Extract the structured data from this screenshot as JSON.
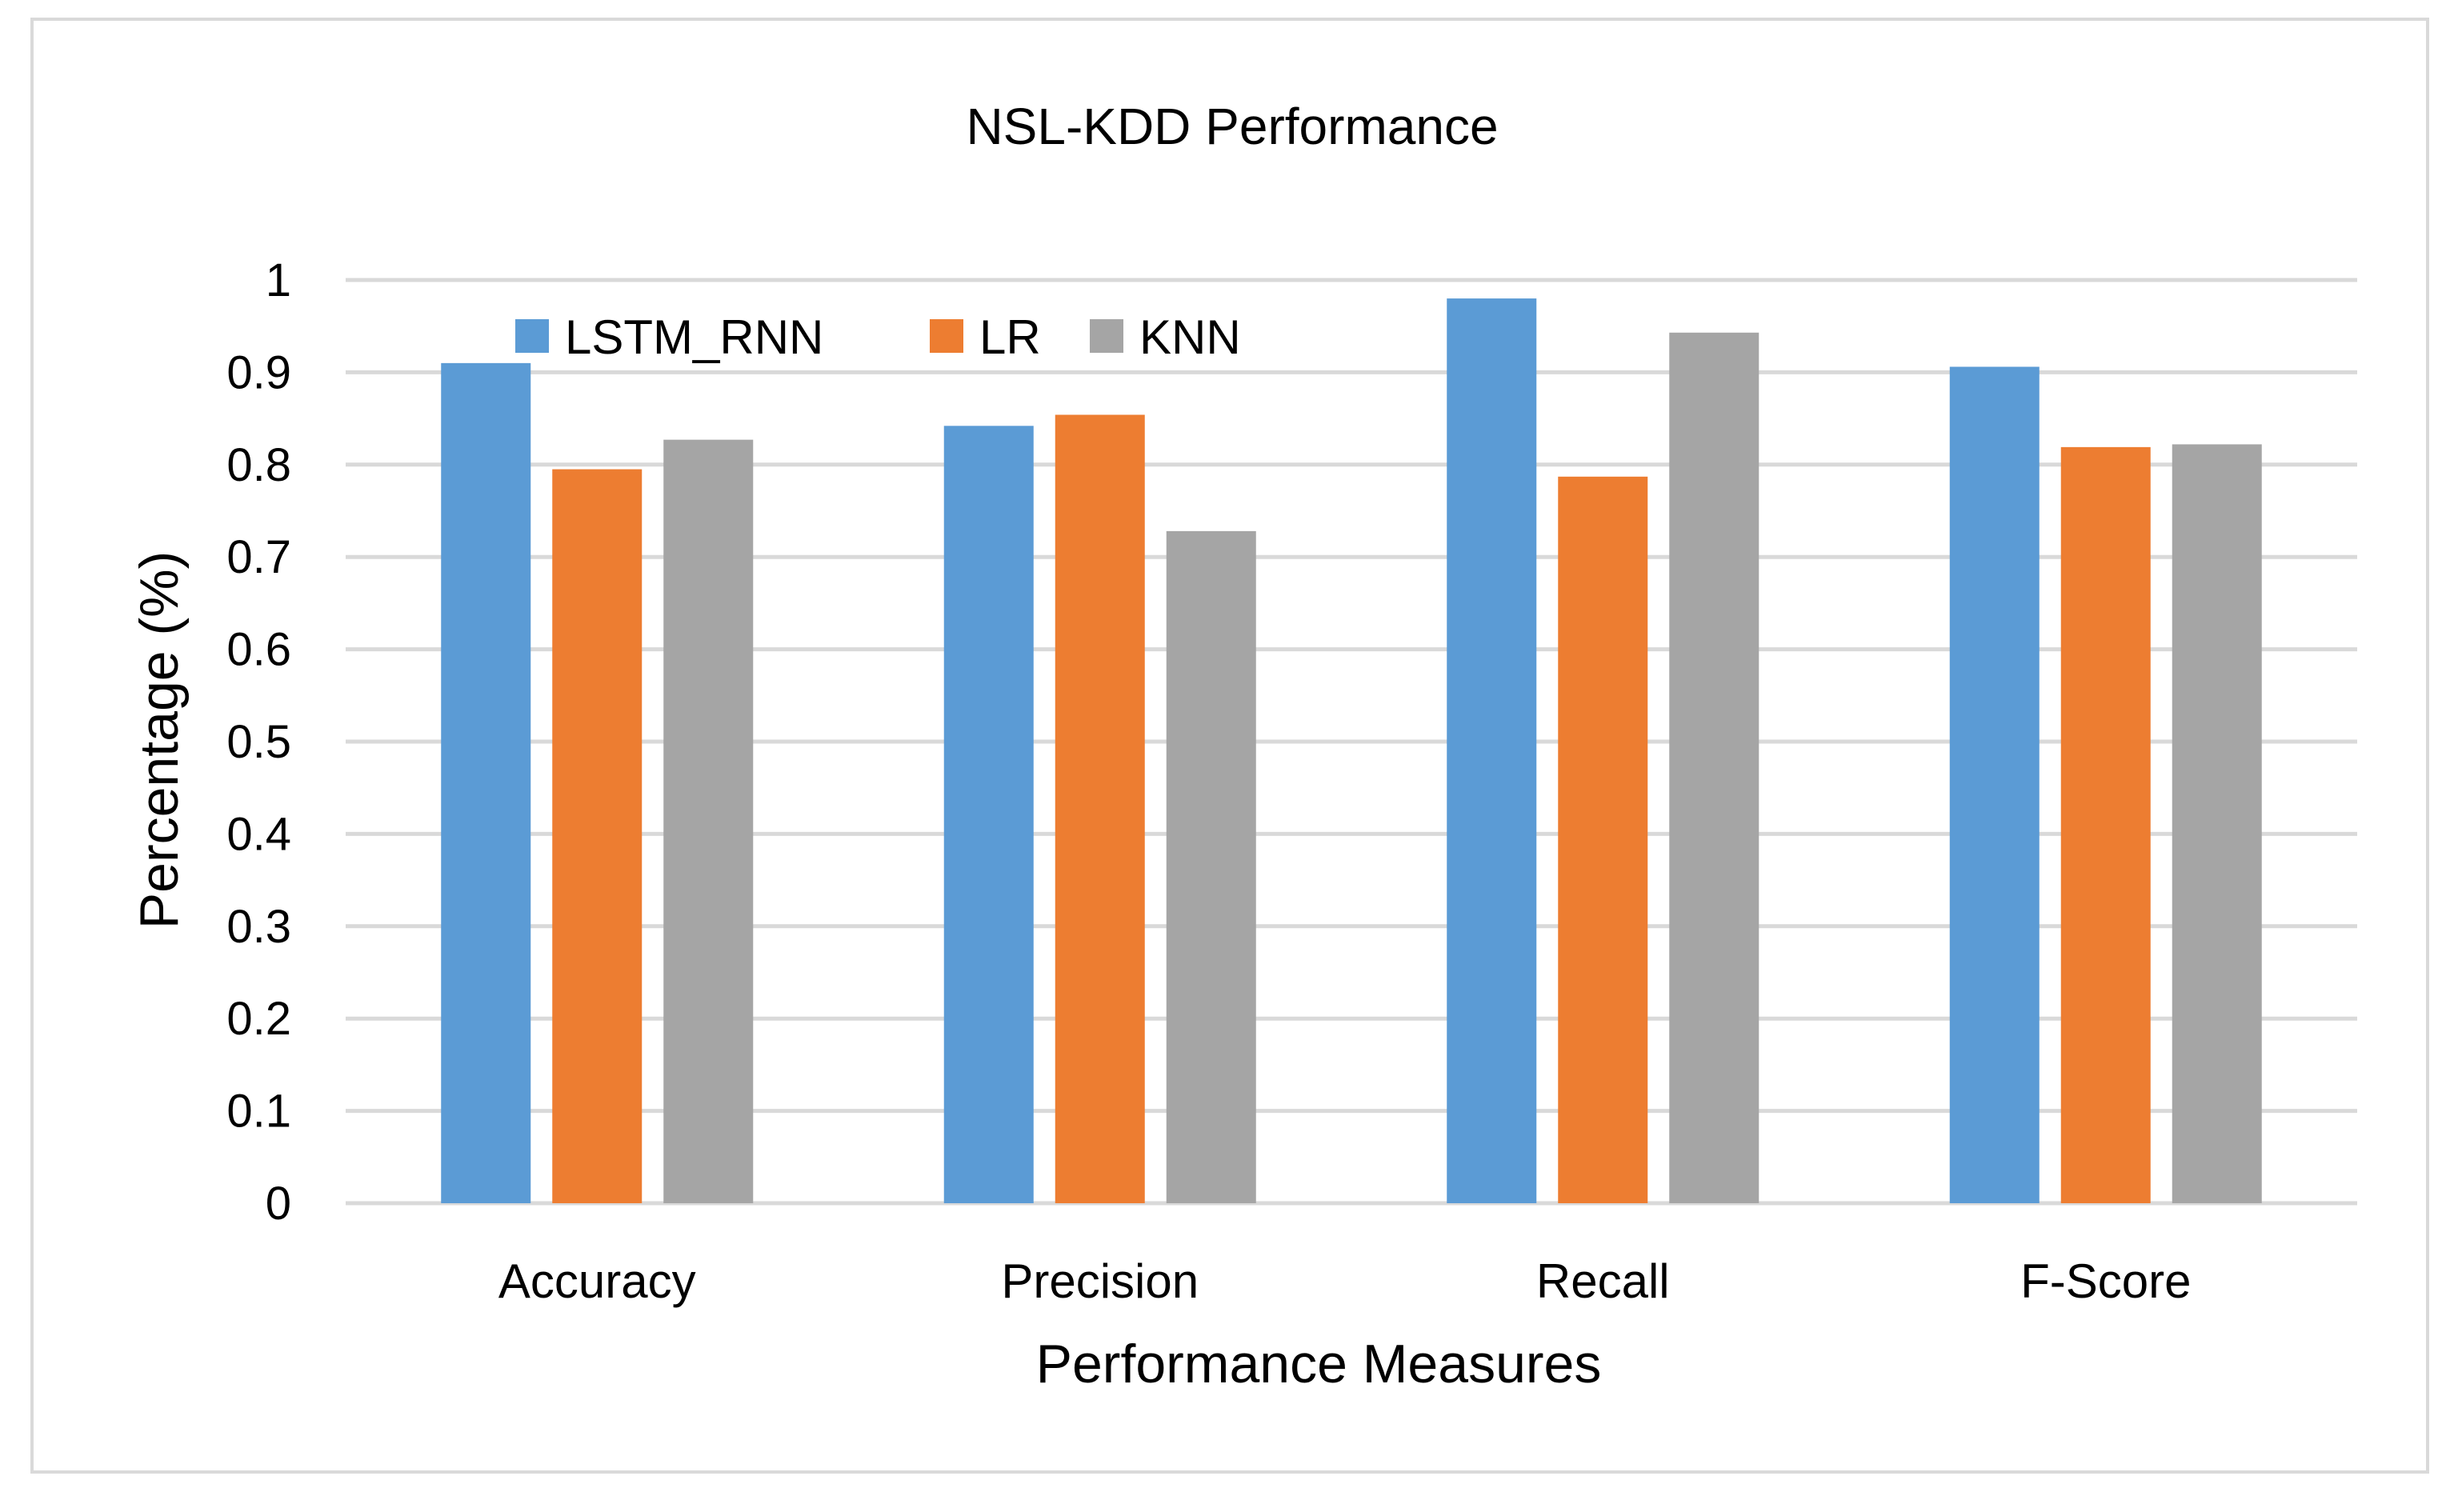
{
  "chart_data": {
    "type": "bar",
    "title": "NSL-KDD Performance",
    "xlabel": "Performance Measures",
    "ylabel": "Percentage (%)",
    "categories": [
      "Accuracy",
      "Precision",
      "Recall",
      "F-Score"
    ],
    "series": [
      {
        "name": "LSTM_RNN",
        "color": "#5b9bd5",
        "values": [
          0.91,
          0.842,
          0.98,
          0.906
        ]
      },
      {
        "name": "LR",
        "color": "#ed7d31",
        "values": [
          0.795,
          0.854,
          0.787,
          0.819
        ]
      },
      {
        "name": "KNN",
        "color": "#a5a5a5",
        "values": [
          0.827,
          0.728,
          0.943,
          0.822
        ]
      }
    ],
    "ylim": [
      0,
      1
    ],
    "yticks": [
      "0",
      "0.1",
      "0.2",
      "0.3",
      "0.4",
      "0.5",
      "0.6",
      "0.7",
      "0.8",
      "0.9",
      "1"
    ],
    "grid": true,
    "legend_position": "top-left"
  }
}
